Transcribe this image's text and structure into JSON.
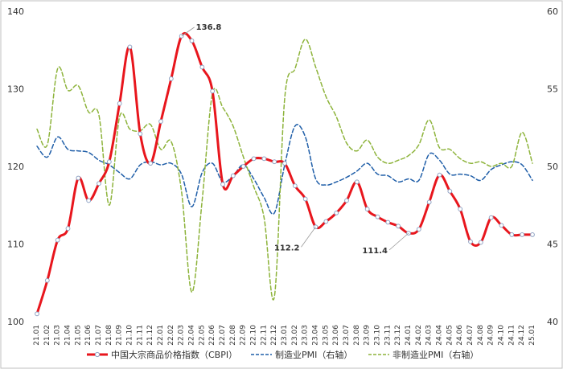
{
  "chart_data": {
    "type": "line",
    "title": "",
    "categories": [
      "21.01",
      "21.02",
      "21.03",
      "21.04",
      "21.05",
      "21.06",
      "21.07",
      "21.08",
      "21.09",
      "21.10",
      "21.11",
      "21.12",
      "22.01",
      "22.02",
      "22.03",
      "22.04",
      "22.05",
      "22.06",
      "22.07",
      "22.08",
      "22.09",
      "22.10",
      "22.11",
      "22.12",
      "23.01",
      "23.02",
      "23.03",
      "23.04",
      "23.05",
      "23.06",
      "23.07",
      "23.08",
      "23.09",
      "23.10",
      "23.11",
      "23.12",
      "24.01",
      "24.02",
      "24.03",
      "24.04",
      "24.05",
      "24.06",
      "24.07",
      "24.08",
      "24.09",
      "24.10",
      "24.11",
      "24.12",
      "25.01"
    ],
    "y_left": {
      "min": 100,
      "max": 140,
      "ticks": [
        "100",
        "110",
        "120",
        "130",
        "140"
      ]
    },
    "y_right": {
      "min": 40,
      "max": 60,
      "ticks": [
        "40",
        "45",
        "50",
        "55",
        "60"
      ]
    },
    "grid": false,
    "legend_position": "bottom",
    "series": [
      {
        "name": "中国大宗商品价格指数（CBPI）",
        "axis": "left",
        "color": "#e8161d",
        "style": "solid",
        "values": [
          101.0,
          105.3,
          110.5,
          112.0,
          118.5,
          115.6,
          117.8,
          120.6,
          128.1,
          135.4,
          124.2,
          120.4,
          125.8,
          131.3,
          136.8,
          136.2,
          132.8,
          129.7,
          117.7,
          118.8,
          120.0,
          121.0,
          121.0,
          120.6,
          120.4,
          117.5,
          115.8,
          112.2,
          112.9,
          114.0,
          115.6,
          118.0,
          114.5,
          113.5,
          112.8,
          112.3,
          111.4,
          111.9,
          115.4,
          118.9,
          116.8,
          114.5,
          110.3,
          110.2,
          113.4,
          112.4,
          111.2,
          111.2,
          111.2
        ],
        "annotations": [
          {
            "category": "22.03",
            "text": "136.8"
          },
          {
            "category": "23.04",
            "text": "112.2"
          },
          {
            "category": "24.01",
            "text": "111.4"
          }
        ]
      },
      {
        "name": "制造业PMI（右轴）",
        "axis": "right",
        "color": "#1f5ea8",
        "style": "dash",
        "values": [
          51.3,
          50.6,
          51.9,
          51.1,
          51.0,
          50.9,
          50.4,
          50.1,
          49.6,
          49.2,
          50.1,
          50.3,
          50.1,
          50.2,
          49.5,
          47.4,
          49.6,
          50.2,
          49.0,
          49.4,
          50.1,
          49.2,
          48.0,
          47.0,
          50.1,
          52.6,
          51.9,
          49.2,
          48.8,
          49.0,
          49.3,
          49.7,
          50.2,
          49.5,
          49.4,
          49.0,
          49.2,
          49.1,
          50.8,
          50.4,
          49.5,
          49.5,
          49.4,
          49.1,
          49.8,
          50.1,
          50.3,
          50.1,
          49.1
        ]
      },
      {
        "name": "非制造业PMI（右轴）",
        "axis": "right",
        "color": "#8db33a",
        "style": "dash",
        "values": [
          52.4,
          51.4,
          56.3,
          54.9,
          55.2,
          53.5,
          53.3,
          47.5,
          53.2,
          52.4,
          52.3,
          52.7,
          51.1,
          51.6,
          48.4,
          41.9,
          47.8,
          54.7,
          53.8,
          52.6,
          50.6,
          48.7,
          46.7,
          41.6,
          54.4,
          56.3,
          58.2,
          56.4,
          54.5,
          53.2,
          51.5,
          51.0,
          51.7,
          50.6,
          50.2,
          50.4,
          50.7,
          51.4,
          53.0,
          51.2,
          51.1,
          50.5,
          50.2,
          50.3,
          50.0,
          50.2,
          50.0,
          52.2,
          50.2
        ]
      }
    ]
  }
}
